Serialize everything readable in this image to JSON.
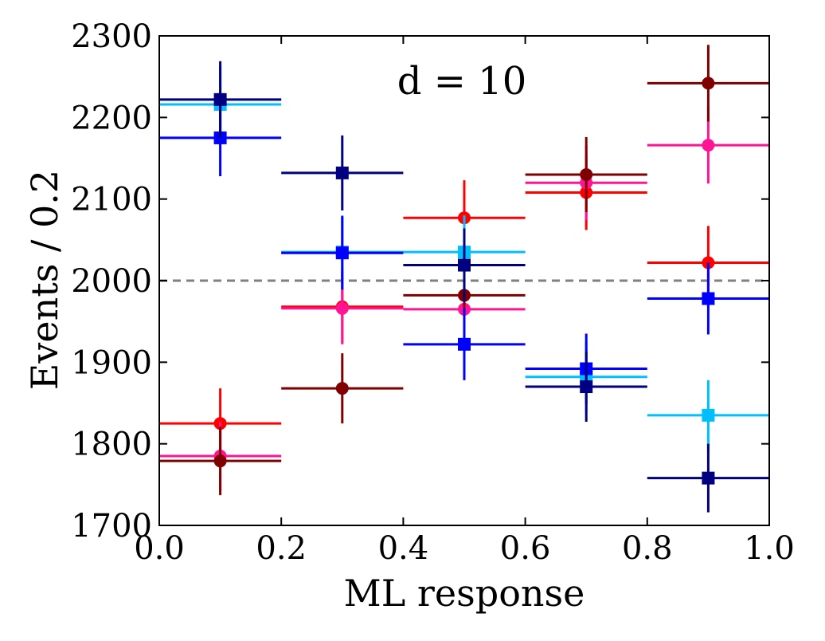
{
  "chart_data": {
    "type": "scatter",
    "xlabel": "ML response",
    "ylabel": "Events / 0.2",
    "annotation": "d = 10",
    "xlim": [
      0.0,
      1.0
    ],
    "ylim": [
      1700,
      2300
    ],
    "x_ticks": [
      "0.0",
      "0.2",
      "0.4",
      "0.6",
      "0.8",
      "1.0"
    ],
    "y_ticks": [
      "1700",
      "1800",
      "1900",
      "2000",
      "2100",
      "2200",
      "2300"
    ],
    "reference_line": {
      "y": 2000,
      "style": "dashed",
      "color": "#808080"
    },
    "bin_width": 0.2,
    "x": [
      0.1,
      0.3,
      0.5,
      0.7,
      0.9
    ],
    "series": [
      {
        "color": "#ff0000",
        "marker": "circle",
        "values": [
          1825,
          1968,
          2077,
          2108,
          2022
        ],
        "yerr": [
          43,
          44,
          46,
          46,
          45
        ]
      },
      {
        "color": "#ff1493",
        "marker": "circle",
        "values": [
          1785,
          1966,
          1965,
          2120,
          2166
        ],
        "yerr": [
          42,
          44,
          44,
          46,
          47
        ]
      },
      {
        "color": "#800000",
        "marker": "circle",
        "values": [
          1779,
          1868,
          1982,
          2130,
          2242
        ],
        "yerr": [
          42,
          43,
          45,
          46,
          47
        ]
      },
      {
        "color": "#00bfff",
        "marker": "square",
        "values": [
          2216,
          2035,
          2035,
          1882,
          1835
        ],
        "yerr": [
          47,
          45,
          45,
          43,
          43
        ]
      },
      {
        "color": "#0000ff",
        "marker": "square",
        "values": [
          2175,
          2034,
          1922,
          1892,
          1978
        ],
        "yerr": [
          47,
          45,
          44,
          43,
          44
        ]
      },
      {
        "color": "#000080",
        "marker": "square",
        "values": [
          2222,
          2132,
          2019,
          1870,
          1758
        ],
        "yerr": [
          47,
          46,
          45,
          43,
          42
        ]
      }
    ]
  }
}
